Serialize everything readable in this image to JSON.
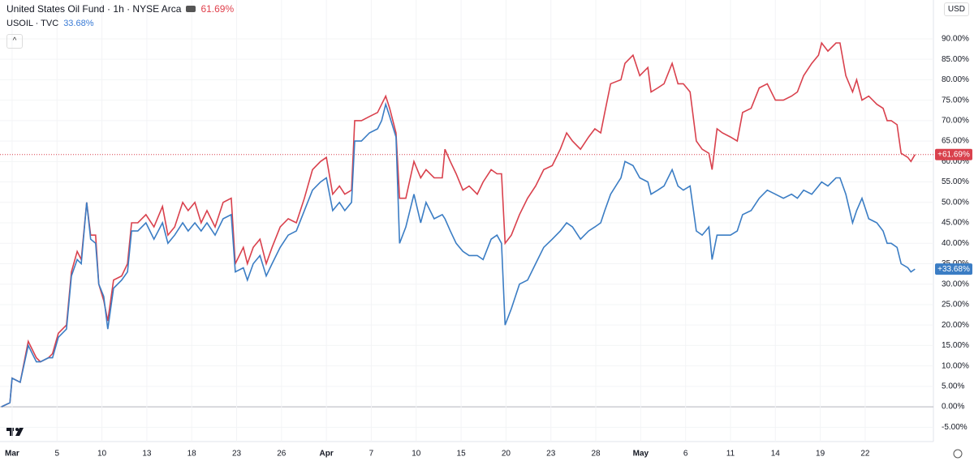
{
  "header": {
    "title": "United States Oil Fund · 1h · NYSE Arca",
    "title_value": "61.69%",
    "compare": "USOIL · TVC",
    "compare_value": "33.68%",
    "currency": "USD"
  },
  "chart_data": {
    "type": "line",
    "x": [
      -0.24,
      -0.05,
      0,
      0.18,
      0.36,
      0.54,
      0.63,
      0.81,
      0.9,
      1.03,
      1.21,
      1.32,
      1.45,
      1.54,
      1.66,
      1.75,
      1.86,
      1.93,
      2.04,
      2.13,
      2.26,
      2.44,
      2.57,
      2.66,
      2.8,
      2.98,
      3.16,
      3.35,
      3.47,
      3.62,
      3.8,
      3.92,
      4.07,
      4.21,
      4.34,
      4.52,
      4.7,
      4.88,
      4.97,
      5.15,
      5.24,
      5.37,
      5.52,
      5.66,
      5.79,
      5.97,
      6.15,
      6.33,
      6.51,
      6.69,
      6.87,
      7.0,
      7.14,
      7.29,
      7.41,
      7.56,
      7.63,
      7.78,
      7.96,
      8.14,
      8.23,
      8.32,
      8.41,
      8.55,
      8.63,
      8.77,
      8.95,
      9.1,
      9.22,
      9.4,
      9.58,
      9.64,
      9.76,
      9.89,
      10.04,
      10.18,
      10.36,
      10.49,
      10.67,
      10.8,
      10.9,
      10.98,
      11.12,
      11.3,
      11.48,
      11.66,
      11.84,
      12.03,
      12.21,
      12.35,
      12.48,
      12.66,
      12.84,
      12.98,
      13.11,
      13.2,
      13.33,
      13.56,
      13.65,
      13.83,
      13.98,
      14.16,
      14.23,
      14.38,
      14.52,
      14.7,
      14.83,
      14.95,
      15.1,
      15.24,
      15.37,
      15.52,
      15.59,
      15.7,
      15.82,
      16.0,
      16.15,
      16.27,
      16.46,
      16.64,
      16.82,
      17.0,
      17.18,
      17.36,
      17.49,
      17.63,
      17.81,
      17.96,
      18.03,
      18.17,
      18.35,
      18.44,
      18.57,
      18.72,
      18.81,
      18.93,
      19.08,
      19.26,
      19.4,
      19.49,
      19.58,
      19.71,
      19.8,
      19.95,
      20.02,
      20.11
    ],
    "series": [
      {
        "name": "United States Oil Fund",
        "color": "#d9414d",
        "last_label": "+61.69%",
        "values": [
          0,
          1,
          7,
          6,
          16,
          12,
          11,
          12,
          13,
          18,
          20,
          33,
          38,
          36,
          50,
          42,
          42,
          30,
          26,
          21,
          31,
          32,
          35,
          45,
          45,
          47,
          44,
          49,
          42,
          44,
          50,
          48,
          50,
          45,
          48,
          44,
          50,
          51,
          35,
          39,
          35,
          39,
          41,
          35,
          39,
          44,
          46,
          45,
          51,
          58,
          60,
          61,
          52,
          54,
          52,
          53,
          70,
          70,
          71,
          72,
          74,
          76,
          73,
          67,
          51,
          51,
          60,
          56,
          58,
          56,
          56,
          63,
          60,
          57,
          53,
          54,
          52,
          55,
          58,
          57,
          57,
          40,
          42,
          47,
          51,
          54,
          58,
          59,
          63,
          67,
          65,
          63,
          66,
          68,
          67,
          72,
          79,
          80,
          84,
          86,
          81,
          83,
          77,
          78,
          79,
          84,
          79,
          79,
          77,
          65,
          63,
          62,
          58,
          68,
          67,
          66,
          65,
          72,
          73,
          78,
          79,
          75,
          75,
          76,
          77,
          81,
          84,
          86,
          89,
          87,
          89,
          89,
          81,
          77,
          80,
          75,
          76,
          74,
          73,
          70,
          70,
          69,
          62,
          61,
          60,
          61.69
        ]
      },
      {
        "name": "USOIL · TVC",
        "color": "#3b7dc4",
        "last_label": "+33.68%",
        "values": [
          0,
          1,
          7,
          6,
          15,
          11,
          11,
          12,
          12,
          17,
          19,
          32,
          36,
          35,
          50,
          41,
          40,
          30,
          27,
          19,
          29,
          31,
          33,
          43,
          43,
          45,
          41,
          45,
          40,
          42,
          45,
          43,
          45,
          43,
          45,
          42,
          46,
          47,
          33,
          34,
          31,
          35,
          37,
          32,
          35,
          39,
          42,
          43,
          48,
          53,
          55,
          56,
          48,
          50,
          48,
          50,
          65,
          65,
          67,
          68,
          70,
          74,
          71,
          66,
          40,
          44,
          52,
          45,
          50,
          46,
          47,
          46,
          43,
          40,
          38,
          37,
          37,
          36,
          41,
          42,
          40,
          20,
          24,
          30,
          31,
          35,
          39,
          41,
          43,
          45,
          44,
          41,
          43,
          44,
          45,
          48,
          52,
          56,
          60,
          59,
          56,
          55,
          52,
          53,
          54,
          58,
          54,
          53,
          54,
          43,
          42,
          44,
          36,
          42,
          42,
          42,
          43,
          47,
          48,
          51,
          53,
          52,
          51,
          52,
          51,
          53,
          52,
          54,
          55,
          54,
          56,
          56,
          52,
          45,
          48,
          51,
          46,
          45,
          43,
          40,
          40,
          39,
          35,
          34,
          33,
          33.68
        ]
      }
    ],
    "xlim": [
      -0.27,
      20.52
    ],
    "xticks": [
      {
        "value": 0,
        "label": "Mar"
      },
      {
        "value": 1,
        "label": "5"
      },
      {
        "value": 2,
        "label": "10"
      },
      {
        "value": 3,
        "label": "13"
      },
      {
        "value": 4,
        "label": "18"
      },
      {
        "value": 5,
        "label": "23"
      },
      {
        "value": 6,
        "label": "26"
      },
      {
        "value": 7,
        "label": "Apr"
      },
      {
        "value": 8,
        "label": "7"
      },
      {
        "value": 9,
        "label": "10"
      },
      {
        "value": 10,
        "label": "15"
      },
      {
        "value": 11,
        "label": "20"
      },
      {
        "value": 12,
        "label": "23"
      },
      {
        "value": 13,
        "label": "28"
      },
      {
        "value": 14,
        "label": "May"
      },
      {
        "value": 15,
        "label": "6"
      },
      {
        "value": 16,
        "label": "11"
      },
      {
        "value": 17,
        "label": "14"
      },
      {
        "value": 18,
        "label": "19"
      },
      {
        "value": 19,
        "label": "22"
      }
    ],
    "ylim": [
      -8.5,
      99.5
    ],
    "yticks": [
      {
        "value": -5,
        "label": "-5.00%"
      },
      {
        "value": 0,
        "label": "0.00%"
      },
      {
        "value": 5,
        "label": "5.00%"
      },
      {
        "value": 10,
        "label": "10.00%"
      },
      {
        "value": 15,
        "label": "15.00%"
      },
      {
        "value": 20,
        "label": "20.00%"
      },
      {
        "value": 25,
        "label": "25.00%"
      },
      {
        "value": 30,
        "label": "30.00%"
      },
      {
        "value": 35,
        "label": "35.00%"
      },
      {
        "value": 40,
        "label": "40.00%"
      },
      {
        "value": 45,
        "label": "45.00%"
      },
      {
        "value": 50,
        "label": "50.00%"
      },
      {
        "value": 55,
        "label": "55.00%"
      },
      {
        "value": 60,
        "label": "60.00%"
      },
      {
        "value": 65,
        "label": "65.00%"
      },
      {
        "value": 70,
        "label": "70.00%"
      },
      {
        "value": 75,
        "label": "75.00%"
      },
      {
        "value": 80,
        "label": "80.00%"
      },
      {
        "value": 85,
        "label": "85.00%"
      },
      {
        "value": 90,
        "label": "90.00%"
      }
    ],
    "grid": true
  }
}
